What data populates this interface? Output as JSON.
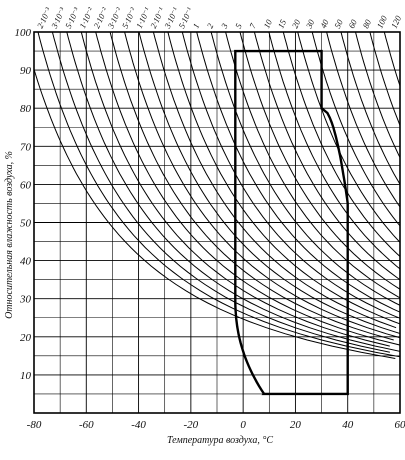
{
  "chart_data": {
    "type": "line",
    "title": "",
    "xlabel": "Температура воздуха, °С",
    "ylabel": "Относительная влажность воздуха, %",
    "xlim": [
      -80,
      60
    ],
    "ylim": [
      0,
      100
    ],
    "x_ticks": [
      -80,
      -60,
      -40,
      -20,
      0,
      20,
      40,
      60
    ],
    "x_tick_labels": [
      "-80",
      "-60",
      "-40",
      "-20",
      "0",
      "20",
      "40",
      "60"
    ],
    "y_ticks": [
      10,
      20,
      30,
      40,
      50,
      60,
      70,
      80,
      90,
      100
    ],
    "y_tick_labels": [
      "10",
      "20",
      "30",
      "40",
      "50",
      "60",
      "70",
      "80",
      "90",
      "100"
    ],
    "grid": true,
    "curve_family_labels": [
      "2·10⁻³",
      "3·10⁻³",
      "5·10⁻³",
      "1·10⁻²",
      "2·10⁻²",
      "3·10⁻²",
      "5·10⁻²",
      "1·10⁻¹",
      "2·10⁻¹",
      "3·10⁻¹",
      "5·10⁻¹",
      "1",
      "2",
      "3",
      "5",
      "7",
      "10",
      "15",
      "20",
      "30",
      "40",
      "50",
      "60",
      "80",
      "100",
      "120"
    ],
    "highlighted_region": {
      "top_y": 95,
      "left_x": -3,
      "right_x": 30,
      "right_edge_x": 40,
      "bottom_y": 5
    }
  }
}
